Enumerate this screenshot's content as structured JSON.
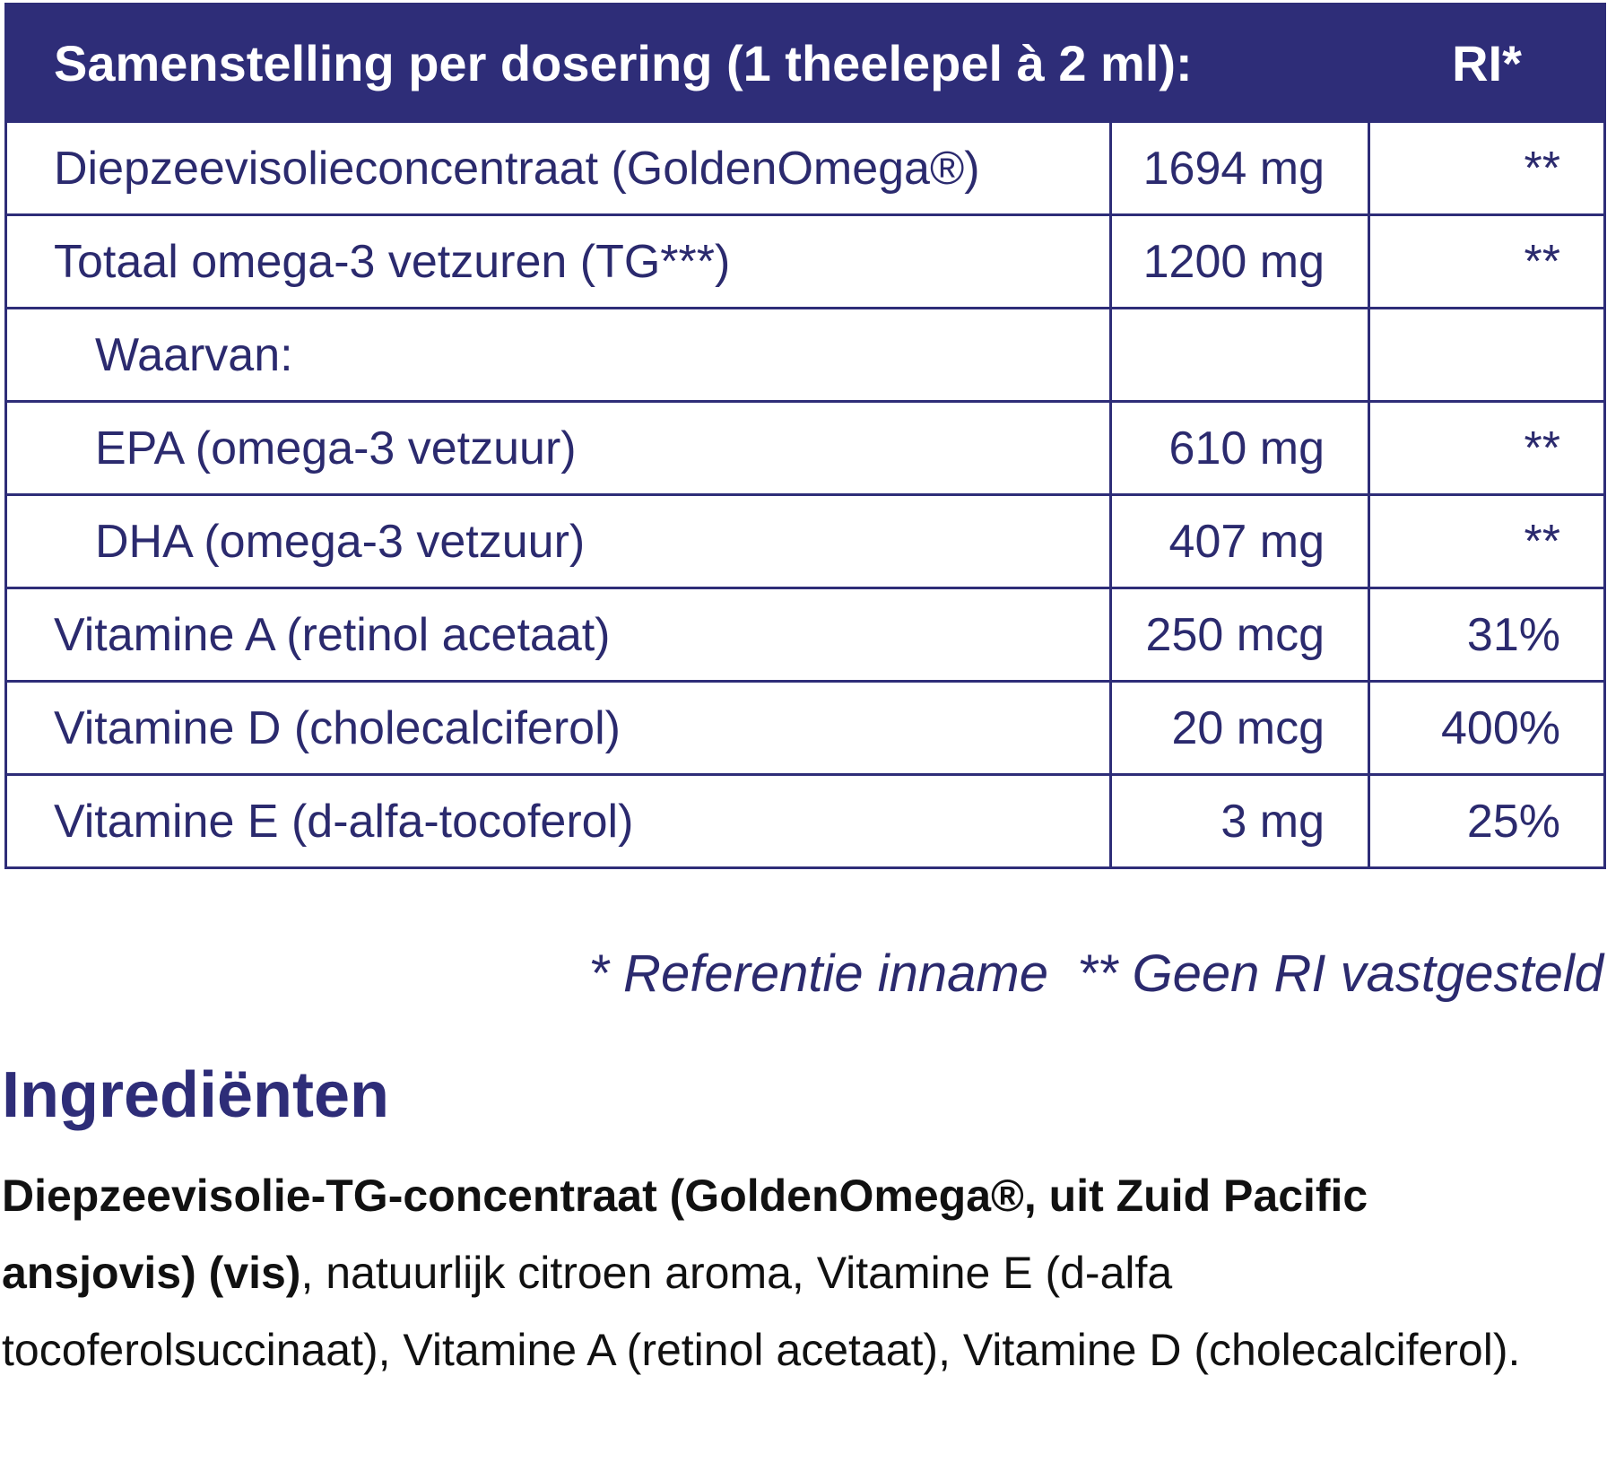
{
  "table": {
    "header": {
      "title": "Samenstelling per dosering (1 theelepel à 2 ml):",
      "ri": "RI*"
    },
    "rows": [
      {
        "name": "Diepzeevisolieconcentraat (GoldenOmega®)",
        "amount": "1694 mg",
        "ri": "**"
      },
      {
        "name": "Totaal omega-3 vetzuren (TG***)",
        "amount": "1200 mg",
        "ri": "**"
      },
      {
        "name": "Waarvan:"
      },
      {
        "name": "EPA (omega-3 vetzuur)",
        "amount": "610 mg",
        "ri": "**"
      },
      {
        "name": "DHA (omega-3 vetzuur)",
        "amount": "407 mg",
        "ri": "**"
      },
      {
        "name": "Vitamine A (retinol acetaat)",
        "amount": "250 mcg",
        "ri": "31%"
      },
      {
        "name": "Vitamine D (cholecalciferol)",
        "amount": "20 mcg",
        "ri": "400%"
      },
      {
        "name": "Vitamine E (d-alfa-tocoferol)",
        "amount": "3 mg",
        "ri": "25%"
      }
    ],
    "footnote": "* Referentie inname  ** Geen RI vastgesteld"
  },
  "ingredients": {
    "title": "Ingrediënten",
    "bold": "Diepzeevisolie-TG-concentraat (GoldenOmega®, uit Zuid Pacific ansjovis) (vis)",
    "text": ", natuurlijk citroen aroma, Vitamine E (d-alfa tocoferolsuccinaat), Vitamine A (retinol acetaat), Vitamine D (cholecalciferol)."
  }
}
